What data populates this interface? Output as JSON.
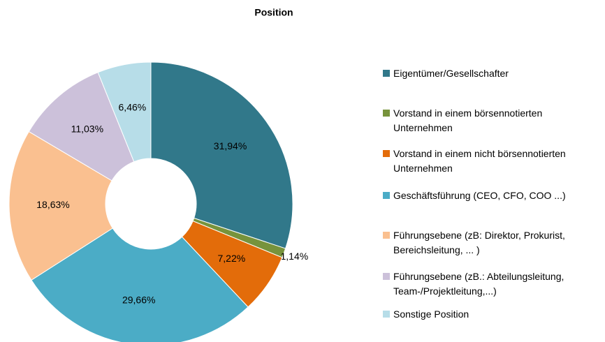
{
  "chart_data": {
    "type": "pie",
    "title": "Position",
    "categories": [
      "Eigentümer/Gesellschafter",
      "Vorstand in einem börsennotierten Unternehmen",
      "Vorstand in einem nicht börsennotierten Unternehmen",
      "Geschäftsführung (CEO, CFO, COO ...)",
      "Führungsebene (zB: Direktor, Prokurist, Bereichsleitung, ... )",
      "Führungsebene (zB.: Abteilungsleitung, Team-/Projektleitung,...)",
      "Sonstige Position"
    ],
    "values": [
      31.94,
      1.14,
      7.22,
      29.66,
      18.63,
      11.03,
      6.46
    ],
    "value_labels": [
      "31,94%",
      "1,14%",
      "7,22%",
      "29,66%",
      "18,63%",
      "11,03%",
      "6,46%"
    ],
    "colors": [
      "#31788a",
      "#77933c",
      "#e36c0a",
      "#4bacc6",
      "#fac090",
      "#ccc1da",
      "#b7dde8"
    ],
    "donut": true,
    "legend": "right"
  }
}
